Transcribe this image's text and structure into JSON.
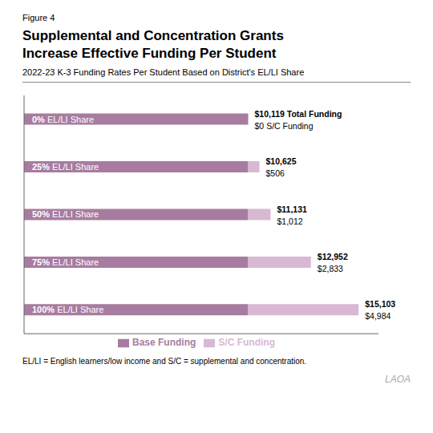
{
  "chart_data": {
    "type": "bar",
    "orientation": "horizontal",
    "stacked": true,
    "title": [
      "Supplemental and Concentration Grants",
      "Increase Effective Funding Per Student"
    ],
    "subtitle": "2022-23 K-3 Funding Rates Per Student Based on District's EL/LI Share",
    "annotations": [
      "Figure 4",
      "EL/LI = English learners/low income and S/C = supplemental and concentration.",
      "LAOA"
    ],
    "categories": [
      "0% EL/LI Share",
      "25% EL/LI Share",
      "50% EL/LI Share",
      "75% EL/LI Share",
      "100% EL/LI Share"
    ],
    "series": [
      {
        "name": "Base Funding",
        "color": "#a87ca0",
        "values": [
          10119,
          10119,
          10119,
          10119,
          10119
        ]
      },
      {
        "name": "S/C Funding",
        "color": "#d9b8d4",
        "values": [
          0,
          506,
          1012,
          2833,
          4984
        ],
        "value_labels": [
          "$0 S/C Funding",
          "$506",
          "$1,012",
          "$2,833",
          "$4,984"
        ]
      }
    ],
    "totals": [
      10119,
      10625,
      11131,
      12952,
      15103
    ],
    "total_labels": [
      "$10,119 Total Funding",
      "$10,625",
      "$11,131",
      "$12,952",
      "$15,103"
    ],
    "xlim": [
      0,
      16000
    ],
    "tick_labels": false,
    "legend": "bottom",
    "data_labels": true
  }
}
